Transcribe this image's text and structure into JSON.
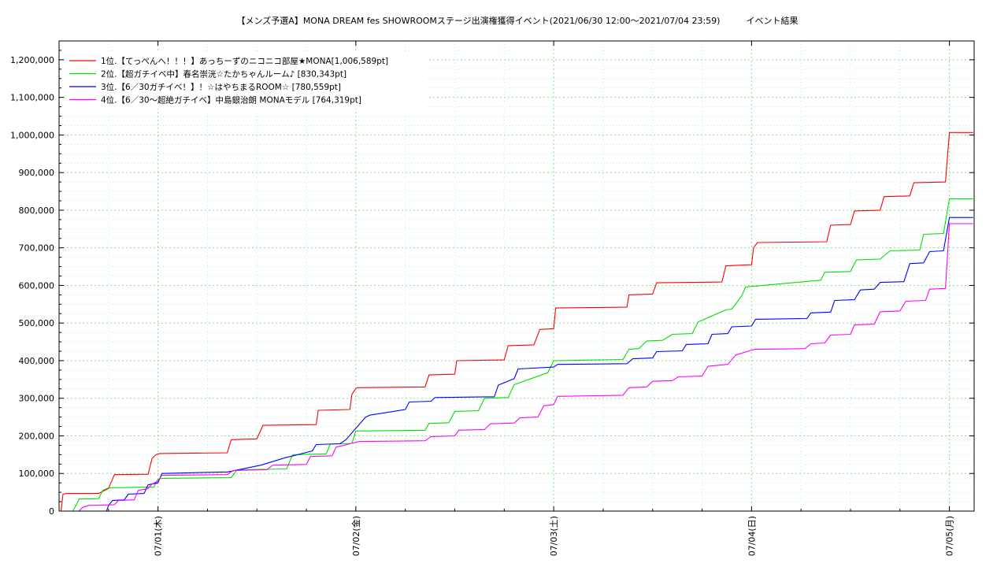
{
  "chart_data": {
    "type": "line",
    "title": "【メンズ予選A】MONA DREAM fes SHOWROOMステージ出演権獲得イベント(2021/06/30 12:00～2021/07/04 23:59)　　　イベント結果",
    "xlabel": "",
    "ylabel": "",
    "xlim": [
      0.5,
      5.125
    ],
    "ylim": [
      0,
      1250000
    ],
    "y_ticks": [
      0,
      100000,
      200000,
      300000,
      400000,
      500000,
      600000,
      700000,
      800000,
      900000,
      1000000,
      1100000,
      1200000
    ],
    "y_tick_labels": [
      "0",
      "100,000",
      "200,000",
      "300,000",
      "400,000",
      "500,000",
      "600,000",
      "700,000",
      "800,000",
      "900,000",
      "1,000,000",
      "1,100,000",
      "1,200,000"
    ],
    "x_ticks": [
      1,
      2,
      3,
      4,
      5
    ],
    "x_tick_labels": [
      "07/01(木)",
      "07/02(金)",
      "07/03(土)",
      "07/04(日)",
      "07/05(月)"
    ],
    "grid": true,
    "legend_position": "top-left",
    "series": [
      {
        "name": "1位.【てっぺんへ！！！】あっちーずのニコニコ部屋★MONA[1,006,589pt]",
        "color": "#ff0000",
        "x": [
          0.5,
          0.51,
          0.52,
          0.54,
          0.7,
          0.75,
          0.78,
          0.95,
          0.97,
          0.99,
          1.0,
          1.01,
          1.35,
          1.37,
          1.5,
          1.53,
          1.8,
          1.81,
          1.97,
          1.98,
          2.0,
          2.01,
          2.35,
          2.37,
          2.5,
          2.51,
          2.75,
          2.77,
          2.9,
          2.93,
          3.0,
          3.01,
          3.37,
          3.38,
          3.5,
          3.52,
          3.85,
          3.87,
          4.0,
          4.01,
          4.03,
          4.38,
          4.4,
          4.5,
          4.52,
          4.65,
          4.67,
          4.8,
          4.82,
          4.98,
          5.0,
          5.12
        ],
        "y": [
          0,
          0,
          45000,
          47000,
          47000,
          60000,
          97000,
          98000,
          140000,
          150000,
          152000,
          153000,
          155000,
          190000,
          192000,
          228000,
          230000,
          268000,
          270000,
          310000,
          326000,
          328000,
          330000,
          362000,
          364000,
          400000,
          402000,
          440000,
          442000,
          483000,
          485000,
          540000,
          542000,
          575000,
          577000,
          607000,
          609000,
          652000,
          655000,
          700000,
          714000,
          716000,
          760000,
          762000,
          798000,
          800000,
          836000,
          838000,
          873000,
          875000,
          1006589,
          1006589
        ]
      },
      {
        "name": "2位.【超ガチイベ中】春名崇洸☆たかちゃんルーム♪ [830,343pt]",
        "color": "#00e000",
        "x": [
          0.5,
          0.57,
          0.6,
          0.6,
          0.7,
          0.72,
          0.75,
          0.98,
          1.0,
          1.02,
          1.37,
          1.4,
          1.65,
          1.68,
          1.85,
          1.87,
          1.98,
          2.0,
          2.35,
          2.37,
          2.47,
          2.5,
          2.62,
          2.65,
          2.77,
          2.8,
          2.97,
          3.0,
          3.35,
          3.38,
          3.43,
          3.47,
          3.55,
          3.6,
          3.7,
          3.73,
          3.87,
          3.9,
          3.95,
          3.97,
          4.35,
          4.37,
          4.5,
          4.53,
          4.65,
          4.7,
          4.85,
          4.87,
          4.97,
          5.0,
          5.12
        ],
        "y": [
          0,
          0,
          30000,
          32000,
          33000,
          55000,
          62000,
          64000,
          85000,
          87000,
          89000,
          110000,
          112000,
          150000,
          152000,
          178000,
          180000,
          213000,
          215000,
          233000,
          235000,
          265000,
          267000,
          300000,
          302000,
          336000,
          368000,
          400000,
          403000,
          430000,
          432000,
          452000,
          454000,
          470000,
          472000,
          503000,
          535000,
          537000,
          572000,
          596000,
          614000,
          635000,
          637000,
          668000,
          670000,
          692000,
          694000,
          736000,
          738000,
          830343,
          830343
        ]
      },
      {
        "name": "3位.【6／30ガチイベ！】！☆はやちまるROOM☆ [780,559pt]",
        "color": "#0000ff",
        "x": [
          0.5,
          0.74,
          0.75,
          0.77,
          0.83,
          0.85,
          0.93,
          0.95,
          1.0,
          1.02,
          1.35,
          1.37,
          1.5,
          1.52,
          1.65,
          1.67,
          1.78,
          1.8,
          1.92,
          1.95,
          2.05,
          2.07,
          2.25,
          2.27,
          2.38,
          2.4,
          2.7,
          2.72,
          2.8,
          2.82,
          3.0,
          3.02,
          3.37,
          3.4,
          3.5,
          3.52,
          3.65,
          3.67,
          3.78,
          3.8,
          3.88,
          3.9,
          4.0,
          4.02,
          4.28,
          4.3,
          4.4,
          4.42,
          4.52,
          4.55,
          4.62,
          4.65,
          4.77,
          4.8,
          4.87,
          4.9,
          4.97,
          5.0,
          5.12
        ],
        "y": [
          0,
          0,
          15000,
          28000,
          30000,
          45000,
          47000,
          70000,
          75000,
          100000,
          104000,
          106000,
          120000,
          122000,
          143000,
          145000,
          160000,
          177000,
          179000,
          190000,
          250000,
          255000,
          270000,
          290000,
          292000,
          302000,
          304000,
          335000,
          352000,
          378000,
          383000,
          390000,
          392000,
          405000,
          407000,
          424000,
          426000,
          443000,
          445000,
          470000,
          472000,
          490000,
          492000,
          510000,
          512000,
          527000,
          529000,
          560000,
          562000,
          588000,
          590000,
          608000,
          610000,
          658000,
          660000,
          690000,
          692000,
          780559,
          780559
        ]
      },
      {
        "name": "4位.【6／30〜超絶ガチイベ】中島銀治朗 MONAモデル [764,319pt]",
        "color": "#ff00ff",
        "x": [
          0.5,
          0.6,
          0.62,
          0.65,
          0.78,
          0.8,
          0.88,
          0.9,
          0.95,
          0.97,
          1.0,
          1.02,
          1.35,
          1.38,
          1.55,
          1.58,
          1.75,
          1.77,
          1.88,
          1.9,
          2.0,
          2.02,
          2.35,
          2.38,
          2.5,
          2.52,
          2.65,
          2.68,
          2.8,
          2.83,
          2.92,
          2.95,
          3.0,
          3.02,
          3.35,
          3.38,
          3.47,
          3.5,
          3.6,
          3.63,
          3.75,
          3.78,
          3.88,
          3.92,
          4.0,
          4.02,
          4.27,
          4.3,
          4.37,
          4.4,
          4.5,
          4.52,
          4.62,
          4.65,
          4.75,
          4.78,
          4.88,
          4.9,
          4.98,
          5.0,
          5.12
        ],
        "y": [
          0,
          0,
          10000,
          15000,
          17000,
          28000,
          30000,
          55000,
          60000,
          72000,
          80000,
          95000,
          97000,
          108000,
          110000,
          122000,
          124000,
          145000,
          147000,
          170000,
          183000,
          185000,
          187000,
          198000,
          200000,
          215000,
          217000,
          232000,
          234000,
          248000,
          250000,
          280000,
          283000,
          305000,
          308000,
          328000,
          330000,
          345000,
          347000,
          357000,
          359000,
          385000,
          390000,
          415000,
          428000,
          430000,
          432000,
          445000,
          447000,
          468000,
          470000,
          495000,
          497000,
          530000,
          532000,
          558000,
          560000,
          590000,
          592000,
          764319,
          764319
        ]
      }
    ]
  }
}
